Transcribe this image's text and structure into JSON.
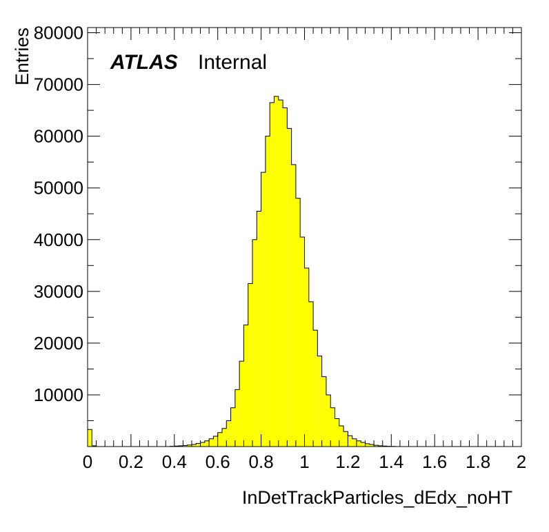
{
  "chart_data": {
    "type": "bar",
    "style": "histogram",
    "fill_color": "#ffff00",
    "line_color": "#000000",
    "xlabel": "InDetTrackParticles_dEdx_noHT",
    "ylabel": "Entries",
    "annotation": {
      "label": "ATLAS",
      "status": "Internal"
    },
    "xlim": [
      0,
      2
    ],
    "ylim": [
      0,
      81000
    ],
    "x_ticks": [
      "0",
      "0.2",
      "0.4",
      "0.6",
      "0.8",
      "1",
      "1.2",
      "1.4",
      "1.6",
      "1.8",
      "2"
    ],
    "y_ticks": [
      "10000",
      "20000",
      "30000",
      "40000",
      "50000",
      "60000",
      "70000",
      "80000"
    ],
    "bin_width": 0.02,
    "bin_edges_start": 0,
    "values": [
      3300,
      150,
      0,
      0,
      0,
      0,
      0,
      0,
      0,
      0,
      0,
      0,
      0,
      0,
      0,
      0,
      0,
      0,
      0,
      50,
      100,
      150,
      200,
      300,
      400,
      600,
      800,
      1100,
      1500,
      2000,
      2700,
      3500,
      5000,
      7500,
      11000,
      16500,
      23500,
      31500,
      40000,
      45500,
      53000,
      60000,
      66500,
      67700,
      67000,
      65500,
      61500,
      54500,
      48000,
      40500,
      34500,
      28000,
      22500,
      17500,
      13500,
      10000,
      7500,
      5400,
      4000,
      2900,
      2100,
      1500,
      1100,
      800,
      550,
      400,
      250,
      150,
      100,
      50,
      30,
      0,
      0,
      0,
      0,
      0,
      0,
      0,
      0,
      0,
      0,
      0,
      0,
      0,
      0,
      0,
      0,
      0,
      0,
      0,
      0,
      0,
      0,
      0,
      0,
      0,
      0,
      0,
      0,
      0
    ]
  }
}
